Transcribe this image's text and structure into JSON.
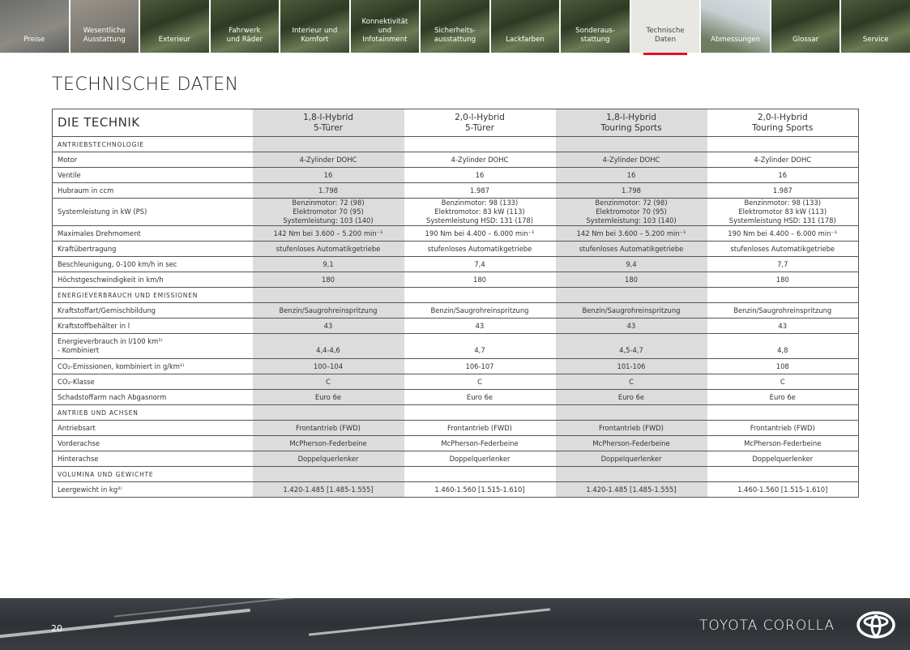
{
  "nav": {
    "tabs": [
      "Preise",
      "Wesentliche\nAusstattung",
      "Exterieur",
      "Fahrwerk\nund Räder",
      "Interieur und\nKomfort",
      "Konnektivität\nund\nInfotainment",
      "Sicherheits-\nausstattung",
      "Lackfarben",
      "Sonderaus-\nstattung",
      "Technische\nDaten",
      "Abmessungen",
      "Glossar",
      "Service"
    ],
    "active_index": 9,
    "accent_color": "#e0102a"
  },
  "page_title": "TECHNISCHE DATEN",
  "table": {
    "title": "DIE TECHNIK",
    "columns": [
      "1,8-l-Hybrid\n5-Türer",
      "2,0-l-Hybrid\n5-Türer",
      "1,8-l-Hybrid\nTouring Sports",
      "2,0-l-Hybrid\nTouring Sports"
    ],
    "rows": [
      {
        "section": "ANTRIEBSTECHNOLOGIE"
      },
      {
        "label": "Motor",
        "values": [
          "4-Zylinder DOHC",
          "4-Zylinder DOHC",
          "4-Zylinder DOHC",
          "4-Zylinder DOHC"
        ]
      },
      {
        "label": "Ventile",
        "values": [
          "16",
          "16",
          "16",
          "16"
        ]
      },
      {
        "label": "Hubraum in ccm",
        "values": [
          "1.798",
          "1.987",
          "1.798",
          "1.987"
        ]
      },
      {
        "label": "Systemleistung in kW (PS)",
        "values": [
          "Benzinmotor: 72 (98)\nElektromotor 70 (95)\nSystemleistung: 103 (140)",
          "Benzinmotor: 98 (133)\nElektromotor: 83 kW (113)\nSystemleistung HSD: 131 (178)",
          "Benzinmotor: 72 (98)\nElektromotor 70 (95)\nSystemleistung: 103 (140)",
          "Benzinmotor: 98 (133)\nElektromotor 83 kW (113)\nSystemleistung HSD: 131 (178)"
        ]
      },
      {
        "label": "Maximales Drehmoment",
        "values": [
          "142 Nm bei 3.600 – 5.200 min⁻¹",
          "190 Nm bei 4.400 – 6.000 min⁻¹",
          "142 Nm bei 3.600 – 5.200 min⁻¹",
          "190 Nm bei 4.400 – 6.000 min⁻¹"
        ]
      },
      {
        "label": "Kraftübertragung",
        "values": [
          "stufenloses Automatikgetriebe",
          "stufenloses Automatikgetriebe",
          "stufenloses Automatikgetriebe",
          "stufenloses Automatikgetriebe"
        ]
      },
      {
        "label": "Beschleunigung, 0-100 km/h in sec",
        "values": [
          "9,1",
          "7,4",
          "9,4",
          "7,7"
        ]
      },
      {
        "label": "Höchstgeschwindigkeit in km/h",
        "values": [
          "180",
          "180",
          "180",
          "180"
        ]
      },
      {
        "section": "ENERGIEVERBRAUCH UND EMISSIONEN"
      },
      {
        "label": "Kraftstoffart/Gemischbildung",
        "values": [
          "Benzin/Saugrohreinspritzung",
          "Benzin/Saugrohreinspritzung",
          "Benzin/Saugrohreinspritzung",
          "Benzin/Saugrohreinspritzung"
        ]
      },
      {
        "label": "Kraftstoffbehälter in l",
        "values": [
          "43",
          "43",
          "43",
          "43"
        ]
      },
      {
        "label": "Energieverbrauch in l/100 km¹⁾\n- Kombiniert",
        "values": [
          "4,4-4,6",
          "4,7",
          "4,5-4,7",
          "4,8"
        ],
        "tall": true
      },
      {
        "label": "CO₂-Emissionen, kombiniert in g/km¹⁾",
        "values": [
          "100–104",
          "106-107",
          "101-106",
          "108"
        ]
      },
      {
        "label": "CO₂-Klasse",
        "values": [
          "C",
          "C",
          "C",
          "C"
        ]
      },
      {
        "label": "Schadstoffarm nach Abgasnorm",
        "values": [
          "Euro 6e",
          "Euro 6e",
          "Euro 6e",
          "Euro 6e"
        ]
      },
      {
        "section": "ANTRIEB UND ACHSEN"
      },
      {
        "label": "Antriebsart",
        "values": [
          "Frontantrieb (FWD)",
          "Frontantrieb (FWD)",
          "Frontantrieb (FWD)",
          "Frontantrieb (FWD)"
        ]
      },
      {
        "label": "Vorderachse",
        "values": [
          "McPherson-Federbeine",
          "McPherson-Federbeine",
          "McPherson-Federbeine",
          "McPherson-Federbeine"
        ]
      },
      {
        "label": "Hinterachse",
        "values": [
          "Doppelquerlenker",
          "Doppelquerlenker",
          "Doppelquerlenker",
          "Doppelquerlenker"
        ]
      },
      {
        "section": "VOLUMINA UND GEWICHTE"
      },
      {
        "label": "Leergewicht in kg²⁾",
        "values": [
          "1.420-1.485 [1.485-1.555]",
          "1.460-1.560 [1.515-1.610]",
          "1.420-1.485 [1.485-1.555]",
          "1.460-1.560 [1.515-1.610]"
        ]
      }
    ]
  },
  "footer": {
    "page_number": "20",
    "brand": "TOYOTA COROLLA",
    "logo": "toyota-logo-icon"
  }
}
